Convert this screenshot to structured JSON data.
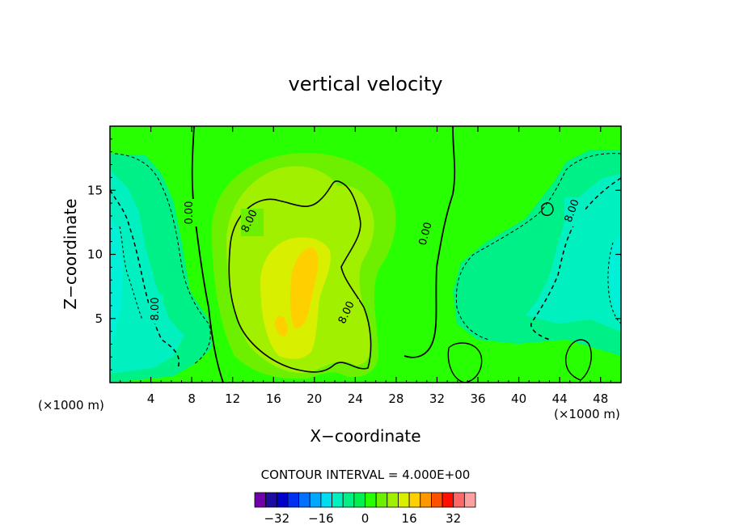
{
  "chart_data": {
    "type": "heatmap",
    "title": "vertical velocity",
    "xlabel": "X−coordinate",
    "ylabel": "Z−coordinate",
    "x_unit": "(×1000 m)",
    "x_unit_right": "(×1000 m)",
    "xlim": [
      0,
      50
    ],
    "ylim": [
      0,
      20
    ],
    "x_ticks": [
      4,
      8,
      12,
      16,
      20,
      24,
      28,
      32,
      36,
      40,
      44,
      48
    ],
    "x_tick_labels": [
      "4",
      "8",
      "12",
      "16",
      "20",
      "24",
      "28",
      "32",
      "36",
      "40",
      "44",
      "48"
    ],
    "y_ticks": [
      5,
      10,
      15
    ],
    "y_tick_labels": [
      "5",
      "10",
      "15"
    ],
    "contour_interval_text": "CONTOUR INTERVAL = 4.000E+00",
    "contour_labels": [
      {
        "text": "0.00",
        "x": 8.2,
        "z": 13.8
      },
      {
        "text": "8.00",
        "x": 13.8,
        "z": 12.4
      },
      {
        "text": "0.00",
        "x": 31.3,
        "z": 11.7
      },
      {
        "text": "8.00",
        "x": 45.3,
        "z": 13.8
      },
      {
        "text": "8.00",
        "x": 4.5,
        "z": 5.6
      },
      {
        "text": "8.00",
        "x": 23.4,
        "z": 5.1
      }
    ],
    "features": [
      {
        "type": "updraft",
        "x": 19,
        "z": 8,
        "peak": 16
      },
      {
        "type": "downdraft",
        "x": 1.5,
        "z": 10,
        "peak": -12
      },
      {
        "type": "downdraft",
        "x": 49,
        "z": 7,
        "peak": -12
      }
    ],
    "colorbar": {
      "levels": [
        -36,
        -32,
        -28,
        -24,
        -20,
        -16,
        -12,
        -8,
        -4,
        0,
        4,
        8,
        12,
        16,
        20,
        24,
        28,
        32,
        36
      ],
      "tick_values": [
        -32,
        -16,
        0,
        16,
        32
      ],
      "tick_labels": [
        "−32",
        "−16",
        "0",
        "16",
        "32"
      ],
      "colors": [
        "#7000a8",
        "#1e0ca0",
        "#0000c8",
        "#0030f0",
        "#0070ff",
        "#00a8ff",
        "#00dcf0",
        "#00f0c0",
        "#00f088",
        "#00f050",
        "#28ff00",
        "#6cf000",
        "#a0f000",
        "#d8f000",
        "#ffd000",
        "#ff9800",
        "#ff5000",
        "#ff1000",
        "#ff6868",
        "#ffa0a0"
      ]
    }
  }
}
